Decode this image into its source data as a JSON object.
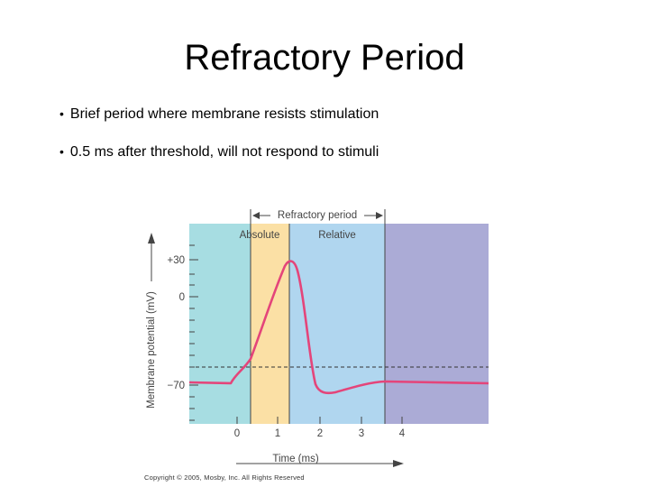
{
  "slide": {
    "title": "Refractory Period",
    "bullets": [
      "Brief period where membrane resists stimulation",
      "0.5 ms after threshold, will not  respond to stimuli"
    ]
  },
  "diagram": {
    "bracket_label": "Refractory period",
    "zone_labels": {
      "absolute": "Absolute",
      "relative": "Relative"
    },
    "y_axis_label": "Membrane potential (mV)",
    "x_axis_label": "Time (ms)",
    "y_ticks": [
      "+30",
      "0",
      "−70"
    ],
    "x_ticks": [
      "0",
      "1",
      "2",
      "3",
      "4"
    ],
    "colors": {
      "teal": "#a7dde2",
      "absolute": "#fbe0a5",
      "relative": "#b0d6ef",
      "purple": "#ababd6",
      "trace": "#e4457a"
    },
    "copyright": "Copyright © 2005, Mosby, Inc. All Rights Reserved"
  }
}
